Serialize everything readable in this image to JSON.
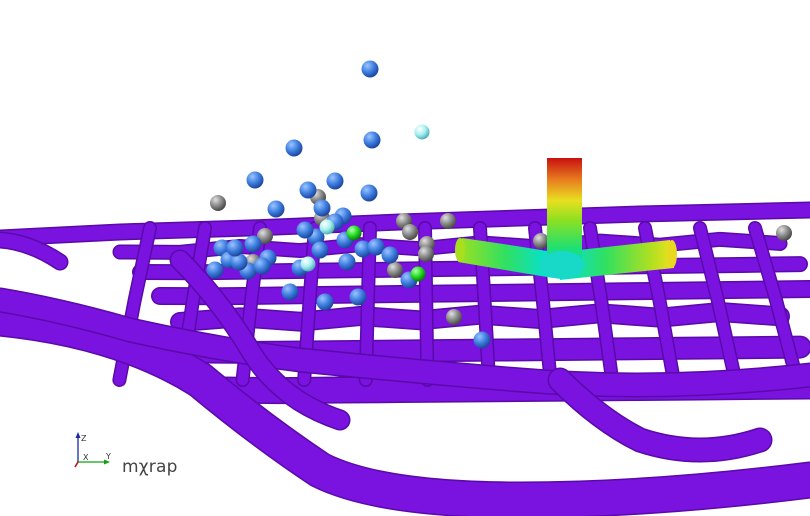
{
  "scene": {
    "brand_label": "mχrap",
    "axes": {
      "z_label": "Z",
      "y_label": "Y",
      "x_label": "X"
    },
    "colors": {
      "background": "#ffffff",
      "network": "#7a12e0",
      "network_shade": "#5a0aa8",
      "sphere_blue": "#3f7fe0",
      "sphere_grey": "#8a8a8a",
      "sphere_cyan": "#a8f0f0",
      "sphere_green": "#22dd22",
      "glyph_gradient": [
        "#00e0e0",
        "#20e060",
        "#80e020",
        "#e0e020",
        "#e08020",
        "#d02010"
      ]
    },
    "sphere_counts": {
      "blue": 34,
      "grey": 15,
      "cyan": 3,
      "green": 2
    }
  }
}
